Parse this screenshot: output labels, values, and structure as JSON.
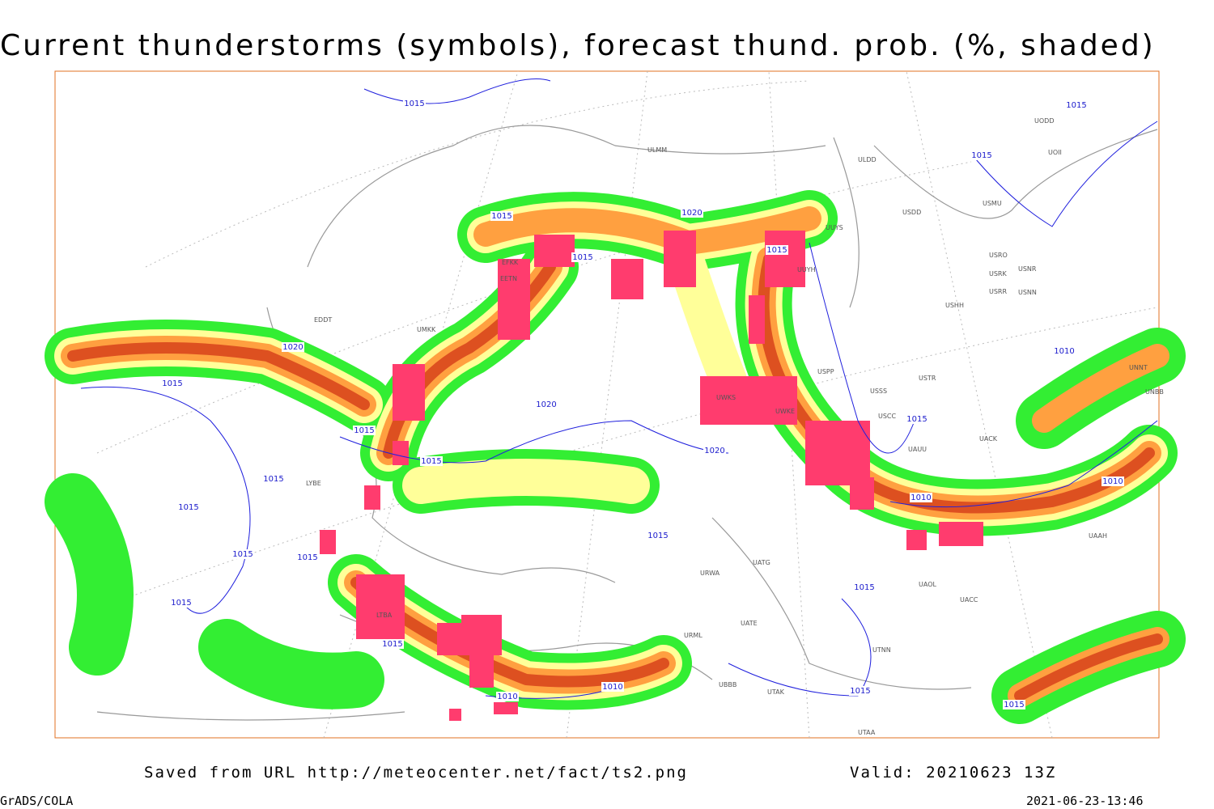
{
  "header": {
    "title": "Current thunderstorms (symbols), forecast thund. prob. (%, shaded)"
  },
  "footer": {
    "source": "Saved from URL http://meteocenter.net/fact/ts2.png",
    "valid": "Valid: 20210623 13Z",
    "software": "GrADS/COLA",
    "timestamp": "2021-06-23-13:46"
  },
  "isobar_labels": [
    "1015",
    "1015",
    "1015",
    "1015",
    "1015",
    "1015",
    "1015",
    "1015",
    "1015",
    "1015",
    "1015",
    "1015",
    "1015",
    "1015",
    "1015",
    "1015",
    "1015",
    "1015",
    "1015",
    "1015",
    "1020",
    "1020",
    "1020",
    "1020",
    "1010",
    "1010",
    "1010",
    "1010",
    "1010"
  ],
  "stations": [
    "ULMM",
    "ULDD",
    "USDD",
    "UUYS",
    "UUYH",
    "USHH",
    "USSS",
    "USCC",
    "EFKK",
    "EETN",
    "UMKK",
    "EDDT",
    "LYBE",
    "LTBA",
    "UWKS",
    "UWKE",
    "UACK",
    "UAUU",
    "UATG",
    "UATE",
    "URWA",
    "URML",
    "UBBB",
    "UTAK",
    "UTNN",
    "UTAA",
    "UAOL",
    "UACC",
    "UAAH",
    "USRR",
    "USRK",
    "USNN",
    "USNR",
    "USRO",
    "UODD",
    "UOII",
    "USMU",
    "UNNT",
    "UNBB",
    "USPP",
    "USTR"
  ]
}
